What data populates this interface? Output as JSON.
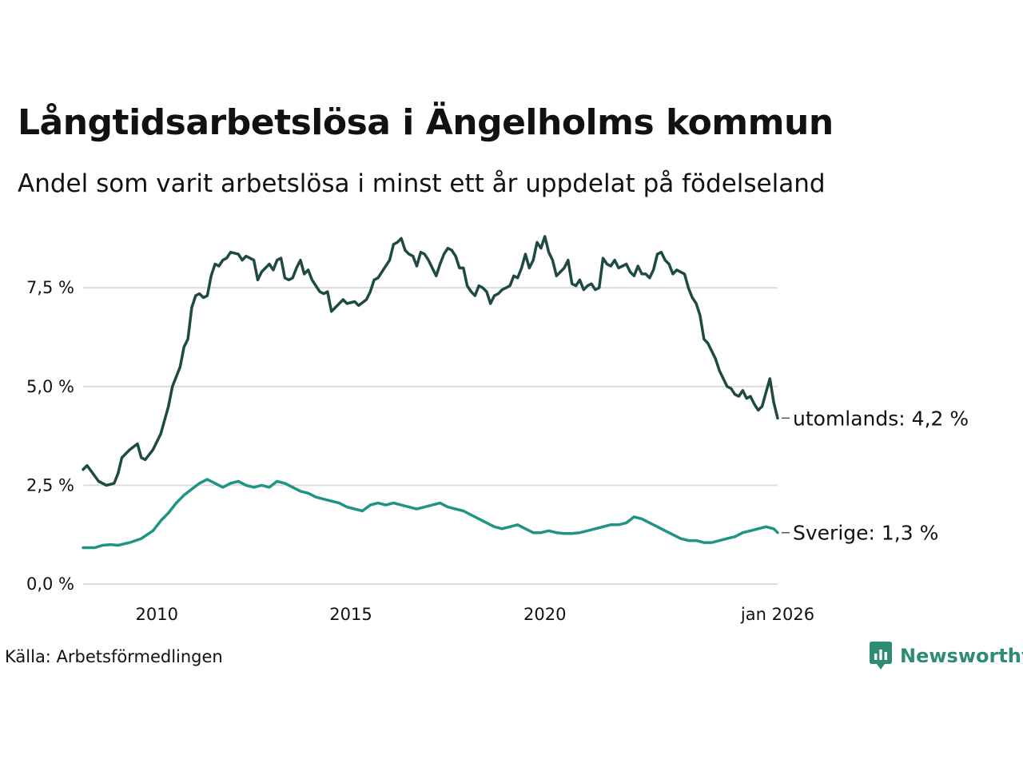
{
  "title": "Långtidsarbetslösa i Ängelholms kommun",
  "subtitle": "Andel som varit arbetslösa i minst ett år uppdelat på födelseland",
  "source": "Källa: Arbetsförmedlingen",
  "brand": {
    "name": "Newsworthy",
    "color": "#2e8b74",
    "icon": "newsworthy-logo-icon"
  },
  "chart_data": {
    "type": "line",
    "title": "Långtidsarbetslösa i Ängelholms kommun",
    "subtitle": "Andel som varit arbetslösa i minst ett år uppdelat på födelseland",
    "xlabel": "",
    "ylabel": "",
    "x_range": [
      2008.1,
      2026.0
    ],
    "ylim": [
      0,
      9
    ],
    "y_ticks": [
      {
        "value": 0.0,
        "label": "0,0 %"
      },
      {
        "value": 2.5,
        "label": "2,5 %"
      },
      {
        "value": 5.0,
        "label": "5,0 %"
      },
      {
        "value": 7.5,
        "label": "7,5 %"
      }
    ],
    "x_ticks": [
      {
        "value": 2010,
        "label": "2010"
      },
      {
        "value": 2015,
        "label": "2015"
      },
      {
        "value": 2020,
        "label": "2020"
      },
      {
        "value": 2026,
        "label": "jan 2026"
      }
    ],
    "grid": "horizontal",
    "series": [
      {
        "name": "utomlands",
        "end_label": "utomlands: 4,2 %",
        "color": "#1f4a44",
        "points": [
          [
            2008.1,
            2.9
          ],
          [
            2008.2,
            3.0
          ],
          [
            2008.5,
            2.6
          ],
          [
            2008.7,
            2.5
          ],
          [
            2008.9,
            2.55
          ],
          [
            2009.0,
            2.8
          ],
          [
            2009.1,
            3.2
          ],
          [
            2009.3,
            3.4
          ],
          [
            2009.5,
            3.55
          ],
          [
            2009.6,
            3.2
          ],
          [
            2009.7,
            3.15
          ],
          [
            2009.9,
            3.4
          ],
          [
            2010.1,
            3.8
          ],
          [
            2010.3,
            4.5
          ],
          [
            2010.4,
            5.0
          ],
          [
            2010.6,
            5.5
          ],
          [
            2010.7,
            6.0
          ],
          [
            2010.8,
            6.2
          ],
          [
            2010.9,
            7.0
          ],
          [
            2011.0,
            7.3
          ],
          [
            2011.1,
            7.35
          ],
          [
            2011.2,
            7.25
          ],
          [
            2011.3,
            7.3
          ],
          [
            2011.4,
            7.8
          ],
          [
            2011.5,
            8.1
          ],
          [
            2011.6,
            8.05
          ],
          [
            2011.7,
            8.2
          ],
          [
            2011.8,
            8.25
          ],
          [
            2011.9,
            8.4
          ],
          [
            2012.1,
            8.35
          ],
          [
            2012.2,
            8.2
          ],
          [
            2012.3,
            8.3
          ],
          [
            2012.5,
            8.2
          ],
          [
            2012.6,
            7.7
          ],
          [
            2012.7,
            7.9
          ],
          [
            2012.8,
            8.0
          ],
          [
            2012.9,
            8.1
          ],
          [
            2013.0,
            7.95
          ],
          [
            2013.1,
            8.2
          ],
          [
            2013.2,
            8.25
          ],
          [
            2013.3,
            7.75
          ],
          [
            2013.4,
            7.7
          ],
          [
            2013.5,
            7.75
          ],
          [
            2013.6,
            8.0
          ],
          [
            2013.7,
            8.2
          ],
          [
            2013.8,
            7.85
          ],
          [
            2013.9,
            7.95
          ],
          [
            2014.0,
            7.7
          ],
          [
            2014.2,
            7.4
          ],
          [
            2014.3,
            7.35
          ],
          [
            2014.4,
            7.4
          ],
          [
            2014.5,
            6.9
          ],
          [
            2014.6,
            7.0
          ],
          [
            2014.8,
            7.2
          ],
          [
            2014.9,
            7.1
          ],
          [
            2015.1,
            7.15
          ],
          [
            2015.2,
            7.05
          ],
          [
            2015.4,
            7.2
          ],
          [
            2015.5,
            7.4
          ],
          [
            2015.6,
            7.7
          ],
          [
            2015.7,
            7.75
          ],
          [
            2015.8,
            7.9
          ],
          [
            2016.0,
            8.2
          ],
          [
            2016.1,
            8.6
          ],
          [
            2016.2,
            8.65
          ],
          [
            2016.3,
            8.75
          ],
          [
            2016.4,
            8.45
          ],
          [
            2016.5,
            8.35
          ],
          [
            2016.6,
            8.3
          ],
          [
            2016.7,
            8.05
          ],
          [
            2016.8,
            8.4
          ],
          [
            2016.9,
            8.35
          ],
          [
            2017.0,
            8.2
          ],
          [
            2017.1,
            8.0
          ],
          [
            2017.2,
            7.8
          ],
          [
            2017.3,
            8.1
          ],
          [
            2017.4,
            8.35
          ],
          [
            2017.5,
            8.5
          ],
          [
            2017.6,
            8.45
          ],
          [
            2017.7,
            8.3
          ],
          [
            2017.8,
            8.0
          ],
          [
            2017.9,
            8.0
          ],
          [
            2018.0,
            7.55
          ],
          [
            2018.1,
            7.4
          ],
          [
            2018.2,
            7.3
          ],
          [
            2018.3,
            7.55
          ],
          [
            2018.4,
            7.5
          ],
          [
            2018.5,
            7.4
          ],
          [
            2018.6,
            7.1
          ],
          [
            2018.7,
            7.3
          ],
          [
            2018.8,
            7.35
          ],
          [
            2018.9,
            7.45
          ],
          [
            2019.0,
            7.5
          ],
          [
            2019.1,
            7.55
          ],
          [
            2019.2,
            7.8
          ],
          [
            2019.3,
            7.75
          ],
          [
            2019.4,
            8.0
          ],
          [
            2019.5,
            8.35
          ],
          [
            2019.6,
            8.0
          ],
          [
            2019.7,
            8.2
          ],
          [
            2019.8,
            8.65
          ],
          [
            2019.9,
            8.5
          ],
          [
            2020.0,
            8.8
          ],
          [
            2020.1,
            8.4
          ],
          [
            2020.2,
            8.2
          ],
          [
            2020.3,
            7.8
          ],
          [
            2020.4,
            7.9
          ],
          [
            2020.5,
            8.0
          ],
          [
            2020.6,
            8.2
          ],
          [
            2020.7,
            7.6
          ],
          [
            2020.8,
            7.55
          ],
          [
            2020.9,
            7.7
          ],
          [
            2021.0,
            7.45
          ],
          [
            2021.1,
            7.55
          ],
          [
            2021.2,
            7.6
          ],
          [
            2021.3,
            7.45
          ],
          [
            2021.4,
            7.5
          ],
          [
            2021.5,
            8.25
          ],
          [
            2021.6,
            8.1
          ],
          [
            2021.7,
            8.05
          ],
          [
            2021.8,
            8.2
          ],
          [
            2021.9,
            8.0
          ],
          [
            2022.0,
            8.05
          ],
          [
            2022.1,
            8.1
          ],
          [
            2022.2,
            7.9
          ],
          [
            2022.3,
            7.8
          ],
          [
            2022.4,
            8.05
          ],
          [
            2022.5,
            7.85
          ],
          [
            2022.6,
            7.85
          ],
          [
            2022.7,
            7.75
          ],
          [
            2022.8,
            7.95
          ],
          [
            2022.9,
            8.35
          ],
          [
            2023.0,
            8.4
          ],
          [
            2023.1,
            8.2
          ],
          [
            2023.2,
            8.1
          ],
          [
            2023.3,
            7.85
          ],
          [
            2023.4,
            7.95
          ],
          [
            2023.5,
            7.9
          ],
          [
            2023.6,
            7.85
          ],
          [
            2023.7,
            7.5
          ],
          [
            2023.8,
            7.25
          ],
          [
            2023.9,
            7.1
          ],
          [
            2024.0,
            6.8
          ],
          [
            2024.1,
            6.2
          ],
          [
            2024.2,
            6.1
          ],
          [
            2024.3,
            5.9
          ],
          [
            2024.4,
            5.7
          ],
          [
            2024.5,
            5.4
          ],
          [
            2024.6,
            5.2
          ],
          [
            2024.7,
            5.0
          ],
          [
            2024.8,
            4.95
          ],
          [
            2024.9,
            4.8
          ],
          [
            2025.0,
            4.75
          ],
          [
            2025.1,
            4.9
          ],
          [
            2025.2,
            4.7
          ],
          [
            2025.3,
            4.75
          ],
          [
            2025.4,
            4.55
          ],
          [
            2025.5,
            4.4
          ],
          [
            2025.6,
            4.5
          ],
          [
            2025.7,
            4.85
          ],
          [
            2025.8,
            5.2
          ],
          [
            2025.9,
            4.6
          ],
          [
            2026.0,
            4.2
          ]
        ]
      },
      {
        "name": "Sverige",
        "end_label": "Sverige: 1,3 %",
        "color": "#1f9484",
        "points": [
          [
            2008.1,
            0.92
          ],
          [
            2008.4,
            0.92
          ],
          [
            2008.6,
            0.98
          ],
          [
            2008.8,
            1.0
          ],
          [
            2009.0,
            0.98
          ],
          [
            2009.3,
            1.05
          ],
          [
            2009.6,
            1.15
          ],
          [
            2009.9,
            1.35
          ],
          [
            2010.1,
            1.6
          ],
          [
            2010.3,
            1.8
          ],
          [
            2010.5,
            2.05
          ],
          [
            2010.7,
            2.25
          ],
          [
            2010.9,
            2.4
          ],
          [
            2011.1,
            2.55
          ],
          [
            2011.3,
            2.65
          ],
          [
            2011.5,
            2.55
          ],
          [
            2011.7,
            2.45
          ],
          [
            2011.9,
            2.55
          ],
          [
            2012.1,
            2.6
          ],
          [
            2012.3,
            2.5
          ],
          [
            2012.5,
            2.45
          ],
          [
            2012.7,
            2.5
          ],
          [
            2012.9,
            2.45
          ],
          [
            2013.1,
            2.6
          ],
          [
            2013.3,
            2.55
          ],
          [
            2013.5,
            2.45
          ],
          [
            2013.7,
            2.35
          ],
          [
            2013.9,
            2.3
          ],
          [
            2014.1,
            2.2
          ],
          [
            2014.3,
            2.15
          ],
          [
            2014.5,
            2.1
          ],
          [
            2014.7,
            2.05
          ],
          [
            2014.9,
            1.95
          ],
          [
            2015.1,
            1.9
          ],
          [
            2015.3,
            1.85
          ],
          [
            2015.5,
            2.0
          ],
          [
            2015.7,
            2.05
          ],
          [
            2015.9,
            2.0
          ],
          [
            2016.1,
            2.05
          ],
          [
            2016.3,
            2.0
          ],
          [
            2016.5,
            1.95
          ],
          [
            2016.7,
            1.9
          ],
          [
            2016.9,
            1.95
          ],
          [
            2017.1,
            2.0
          ],
          [
            2017.3,
            2.05
          ],
          [
            2017.5,
            1.95
          ],
          [
            2017.7,
            1.9
          ],
          [
            2017.9,
            1.85
          ],
          [
            2018.1,
            1.75
          ],
          [
            2018.3,
            1.65
          ],
          [
            2018.5,
            1.55
          ],
          [
            2018.7,
            1.45
          ],
          [
            2018.9,
            1.4
          ],
          [
            2019.1,
            1.45
          ],
          [
            2019.3,
            1.5
          ],
          [
            2019.5,
            1.4
          ],
          [
            2019.7,
            1.3
          ],
          [
            2019.9,
            1.3
          ],
          [
            2020.1,
            1.35
          ],
          [
            2020.3,
            1.3
          ],
          [
            2020.5,
            1.28
          ],
          [
            2020.7,
            1.28
          ],
          [
            2020.9,
            1.3
          ],
          [
            2021.1,
            1.35
          ],
          [
            2021.3,
            1.4
          ],
          [
            2021.5,
            1.45
          ],
          [
            2021.7,
            1.5
          ],
          [
            2021.9,
            1.5
          ],
          [
            2022.1,
            1.55
          ],
          [
            2022.3,
            1.7
          ],
          [
            2022.5,
            1.65
          ],
          [
            2022.7,
            1.55
          ],
          [
            2022.9,
            1.45
          ],
          [
            2023.1,
            1.35
          ],
          [
            2023.3,
            1.25
          ],
          [
            2023.5,
            1.15
          ],
          [
            2023.7,
            1.1
          ],
          [
            2023.9,
            1.1
          ],
          [
            2024.1,
            1.05
          ],
          [
            2024.3,
            1.05
          ],
          [
            2024.5,
            1.1
          ],
          [
            2024.7,
            1.15
          ],
          [
            2024.9,
            1.2
          ],
          [
            2025.1,
            1.3
          ],
          [
            2025.3,
            1.35
          ],
          [
            2025.5,
            1.4
          ],
          [
            2025.7,
            1.45
          ],
          [
            2025.9,
            1.4
          ],
          [
            2026.0,
            1.3
          ]
        ]
      }
    ]
  }
}
